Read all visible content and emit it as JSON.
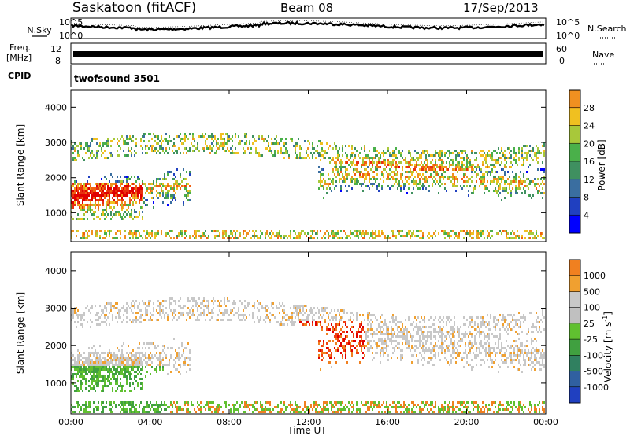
{
  "header": {
    "site": "Saskatoon (fitACF)",
    "beam": "Beam 08",
    "date": "17/Sep/2013"
  },
  "aux_panels": {
    "nsky_label": "N.Sky",
    "nsearch_label": "N.Search",
    "noise_ticks": [
      "10^5",
      "10^0"
    ],
    "freq_label_1": "Freq.",
    "freq_label_2": "[MHz]",
    "freq_ticks": [
      "12",
      "8"
    ],
    "nave_label": "Nave",
    "nave_ticks": [
      "60",
      "0"
    ],
    "cpid_label": "CPID",
    "cpid_value": "twofsound 3501"
  },
  "colors": {
    "power": [
      "#0000ff",
      "#2040c0",
      "#3a6ea0",
      "#3f9060",
      "#4ab04a",
      "#a8c83a",
      "#f0c020",
      "#f09020",
      "#f06010",
      "#e83010",
      "#e00000"
    ],
    "velocity": [
      "#e00000",
      "#f04010",
      "#f08020",
      "#f0a030",
      "#c8c8c8",
      "#c0c0c0",
      "#60c030",
      "#40a040",
      "#308060",
      "#3060a0",
      "#2040c0"
    ]
  },
  "chart_data": [
    {
      "type": "heatmap",
      "title": "Power",
      "ylabel": "Slant Range [km]",
      "ylim": [
        180,
        4500
      ],
      "y_ticks": [
        "1000",
        "2000",
        "3000",
        "4000"
      ],
      "colorbar_label": "Power [dB]",
      "colorbar_ticks": [
        "4",
        "8",
        "12",
        "16",
        "20",
        "24",
        "28"
      ],
      "colorbar_range": [
        0,
        32
      ]
    },
    {
      "type": "heatmap",
      "title": "Velocity",
      "ylabel": "Slant Range [km]",
      "ylim": [
        180,
        4500
      ],
      "y_ticks": [
        "1000",
        "2000",
        "3000",
        "4000"
      ],
      "colorbar_label": "Velocity [m s",
      "colorbar_unit_exp": "-1",
      "colorbar_ticks": [
        "1000",
        "500",
        "100",
        "25",
        "-25",
        "-100",
        "-500",
        "-1000"
      ]
    }
  ],
  "x_axis": {
    "label": "Time UT",
    "ticks": [
      "00:00",
      "04:00",
      "08:00",
      "12:00",
      "16:00",
      "20:00",
      "00:00"
    ]
  }
}
